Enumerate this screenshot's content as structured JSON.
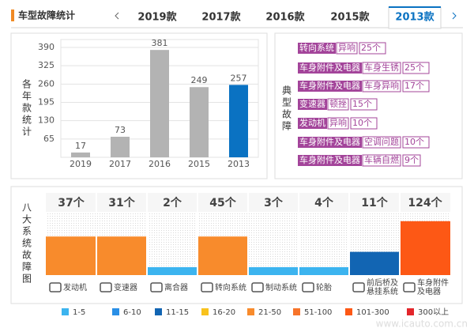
{
  "header": {
    "title": "车型故障统计",
    "tabs": [
      "2019款",
      "2017款",
      "2016款",
      "2015款",
      "2013款"
    ],
    "selected_tab": 4
  },
  "faults": {
    "title": "典型故障",
    "color": "#a3449a",
    "items": [
      {
        "system": "转向系统",
        "fault": "异响",
        "count": "25个"
      },
      {
        "system": "车身附件及电器",
        "fault": "车身生锈",
        "count": "25个"
      },
      {
        "system": "车身附件及电器",
        "fault": "车身异响",
        "count": "17个"
      },
      {
        "system": "变速器",
        "fault": "顿挫",
        "count": "15个"
      },
      {
        "system": "发动机",
        "fault": "异响",
        "count": "10个"
      },
      {
        "system": "车身附件及电器",
        "fault": "空调问题",
        "count": "10个"
      },
      {
        "system": "车身附件及电器",
        "fault": "车辆自燃",
        "count": "9个"
      }
    ]
  },
  "chart_data": [
    {
      "type": "bar",
      "y_label": "各年款统计",
      "categories": [
        "2019",
        "2017",
        "2016",
        "2015",
        "2013"
      ],
      "values": [
        17,
        73,
        381,
        249,
        257
      ],
      "colors": [
        "#b3b3b3",
        "#b3b3b3",
        "#b3b3b3",
        "#b3b3b3",
        "#0a72c2"
      ],
      "ylim": [
        0,
        418
      ],
      "yticks": [
        65,
        130,
        195,
        260,
        325,
        390
      ],
      "grid": true
    },
    {
      "type": "rangebar",
      "title": "八大系统故障图",
      "categories": [
        "发动机",
        "变速器",
        "离合器",
        "转向系统",
        "制动系统",
        "轮胎",
        "前后桥及悬挂系统",
        "车身附件及电器"
      ],
      "values": [
        37,
        31,
        2,
        45,
        3,
        4,
        11,
        124
      ],
      "value_labels": [
        "37个",
        "31个",
        "2个",
        "45个",
        "3个",
        "4个",
        "11个",
        "124个"
      ],
      "legend": [
        {
          "label": "1-5",
          "color": "#3cb4ef"
        },
        {
          "label": "6-10",
          "color": "#2a8fe6"
        },
        {
          "label": "11-15",
          "color": "#1265b3"
        },
        {
          "label": "16-20",
          "color": "#f8c21d"
        },
        {
          "label": "21-50",
          "color": "#f88b2c"
        },
        {
          "label": "51-100",
          "color": "#f7742a"
        },
        {
          "label": "101-300",
          "color": "#fd5815"
        },
        {
          "label": "300以上",
          "color": "#e3262b"
        }
      ]
    }
  ],
  "watermark": "www.icauto.com.cn"
}
